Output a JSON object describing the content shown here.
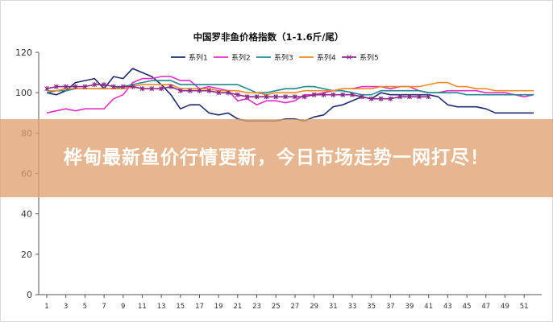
{
  "banner": {
    "text": "桦甸最新鱼价行情更新，今日市场走势一网打尽！"
  },
  "chart_data": {
    "type": "line",
    "title": "中国罗非鱼价格指数（1-1.6斤/尾）",
    "xlabel": "",
    "ylabel": "",
    "ylim": [
      0,
      120
    ],
    "xlim": [
      1,
      52
    ],
    "yticks": [
      0,
      20,
      40,
      60,
      80,
      100,
      120
    ],
    "xticks": [
      1,
      3,
      5,
      7,
      9,
      11,
      13,
      15,
      17,
      19,
      21,
      23,
      25,
      27,
      29,
      31,
      33,
      35,
      37,
      39,
      41,
      43,
      45,
      47,
      49,
      51
    ],
    "grid": false,
    "legend_position": "top",
    "series": [
      {
        "name": "系列1",
        "color": "#1f2b6e",
        "marker": "none",
        "x": [
          1,
          2,
          3,
          4,
          5,
          6,
          7,
          8,
          9,
          10,
          11,
          12,
          13,
          14,
          15,
          16,
          17,
          18,
          19,
          20,
          21,
          22,
          23,
          24,
          25,
          26,
          27,
          28,
          29,
          30,
          31,
          32,
          33,
          34,
          35,
          36,
          37,
          38,
          39,
          40,
          41,
          42,
          43,
          44,
          45,
          46,
          47,
          48,
          49,
          50,
          51,
          52
        ],
        "values": [
          100,
          99,
          101,
          105,
          106,
          107,
          102,
          108,
          107,
          112,
          110,
          108,
          104,
          99,
          92,
          94,
          94,
          90,
          89,
          90,
          87,
          86,
          86,
          86,
          86,
          87,
          87,
          86,
          88,
          89,
          93,
          94,
          96,
          98,
          97,
          100,
          99,
          99,
          99,
          99,
          99,
          98,
          94,
          93,
          93,
          93,
          92,
          90,
          90,
          90,
          90,
          90
        ]
      },
      {
        "name": "系列2",
        "color": "#e030c8",
        "marker": "none",
        "x": [
          1,
          2,
          3,
          4,
          5,
          6,
          7,
          8,
          9,
          10,
          11,
          12,
          13,
          14,
          15,
          16,
          17,
          18,
          19,
          20,
          21,
          22,
          23,
          24,
          25,
          26,
          27,
          28,
          29,
          30,
          31,
          32,
          33,
          34,
          35,
          36,
          37,
          38,
          39,
          40,
          41,
          42,
          43,
          44,
          45,
          46,
          47,
          48,
          49,
          50,
          51,
          52
        ],
        "values": [
          90,
          91,
          92,
          91,
          92,
          92,
          92,
          97,
          99,
          105,
          107,
          107,
          108,
          108,
          106,
          106,
          102,
          103,
          102,
          101,
          96,
          97,
          94,
          96,
          96,
          95,
          96,
          99,
          99,
          100,
          101,
          102,
          102,
          103,
          103,
          103,
          102,
          103,
          103,
          101,
          100,
          100,
          101,
          101,
          101,
          101,
          100,
          100,
          100,
          99,
          98,
          99
        ]
      },
      {
        "name": "系列3",
        "color": "#1f8a8e",
        "marker": "none",
        "x": [
          1,
          2,
          3,
          4,
          5,
          6,
          7,
          8,
          9,
          10,
          11,
          12,
          13,
          14,
          15,
          16,
          17,
          18,
          19,
          20,
          21,
          22,
          23,
          24,
          25,
          26,
          27,
          28,
          29,
          30,
          31,
          32,
          33,
          34,
          35,
          36,
          37,
          38,
          39,
          40,
          41,
          42,
          43,
          44,
          45,
          46,
          47,
          48,
          49,
          50,
          51,
          52
        ],
        "values": [
          100,
          101,
          101,
          102,
          102,
          102,
          102,
          102,
          103,
          104,
          105,
          106,
          106,
          106,
          104,
          104,
          104,
          104,
          104,
          104,
          104,
          102,
          100,
          100,
          101,
          102,
          102,
          103,
          103,
          102,
          101,
          101,
          100,
          99,
          99,
          101,
          101,
          101,
          101,
          101,
          100,
          100,
          100,
          100,
          99,
          99,
          99,
          99,
          99,
          99,
          99,
          99
        ]
      },
      {
        "name": "系列4",
        "color": "#f08a28",
        "marker": "none",
        "x": [
          1,
          2,
          3,
          4,
          5,
          6,
          7,
          8,
          9,
          10,
          11,
          12,
          13,
          14,
          15,
          16,
          17,
          18,
          19,
          20,
          21,
          22,
          23,
          24,
          25,
          26,
          27,
          28,
          29,
          30,
          31,
          32,
          33,
          34,
          35,
          36,
          37,
          38,
          39,
          40,
          41,
          42,
          43,
          44,
          45,
          46,
          47,
          48,
          49,
          50,
          51,
          52
        ],
        "values": [
          101,
          101,
          102,
          102,
          102,
          102,
          102,
          102,
          102,
          103,
          104,
          104,
          104,
          104,
          102,
          102,
          102,
          102,
          101,
          101,
          101,
          100,
          100,
          99,
          100,
          100,
          100,
          101,
          101,
          101,
          101,
          102,
          102,
          102,
          102,
          103,
          103,
          103,
          103,
          103,
          104,
          105,
          105,
          103,
          103,
          102,
          102,
          101,
          101,
          101,
          101,
          101
        ]
      },
      {
        "name": "系列5",
        "color": "#8a2a8a",
        "marker": "star",
        "x": [
          1,
          2,
          3,
          4,
          5,
          6,
          7,
          8,
          9,
          10,
          11,
          12,
          13,
          14,
          15,
          16,
          17,
          18,
          19,
          20,
          21,
          22,
          23,
          24,
          25,
          26,
          27,
          28,
          29,
          30,
          31,
          32,
          33,
          34,
          35,
          36,
          37,
          38,
          39,
          40,
          41
        ],
        "values": [
          102,
          103,
          103,
          103,
          103,
          104,
          104,
          103,
          103,
          103,
          102,
          102,
          102,
          103,
          101,
          101,
          101,
          101,
          100,
          100,
          99,
          98,
          98,
          98,
          98,
          98,
          98,
          98,
          99,
          99,
          99,
          99,
          99,
          98,
          97,
          97,
          97,
          98,
          98,
          98,
          98
        ]
      }
    ]
  }
}
